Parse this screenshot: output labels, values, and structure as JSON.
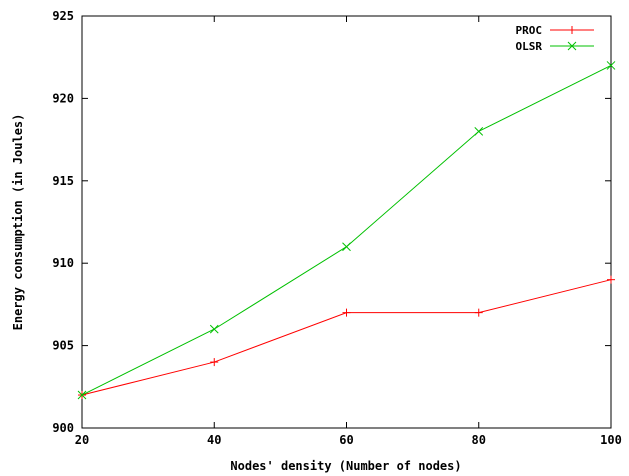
{
  "chart_data": {
    "type": "line",
    "title": "",
    "xlabel": "Nodes' density (Number of nodes)",
    "ylabel": "Energy consumption (in Joules)",
    "x": [
      20,
      40,
      60,
      80,
      100
    ],
    "xlim": [
      20,
      100
    ],
    "ylim": [
      900,
      925
    ],
    "xticks": [
      "20",
      "40",
      "60",
      "80",
      "100"
    ],
    "yticks": [
      "900",
      "905",
      "910",
      "915",
      "920",
      "925"
    ],
    "grid": false,
    "legend_position": "top-right",
    "series": [
      {
        "name": "PROC",
        "color": "#ff0000",
        "marker": "plus",
        "values": [
          902,
          904,
          907,
          907,
          909
        ]
      },
      {
        "name": "OLSR",
        "color": "#00c000",
        "marker": "x",
        "values": [
          902,
          906,
          911,
          918,
          922
        ]
      }
    ]
  }
}
